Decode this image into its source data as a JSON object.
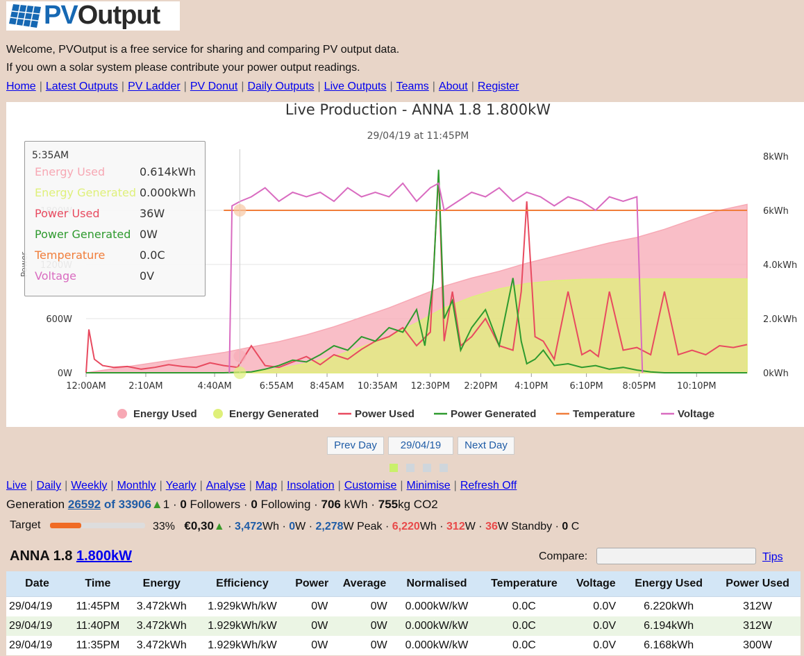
{
  "logo": {
    "text_pv": "PV",
    "text_output": "Output"
  },
  "intro": {
    "line1": "Welcome, PVOutput is a free service for sharing and comparing PV output data.",
    "line2": "If you own a solar system please contribute your power output readings."
  },
  "nav": [
    "Home",
    "Latest Outputs",
    "PV Ladder",
    "PV Donut",
    "Daily Outputs",
    "Live Outputs",
    "Teams",
    "About",
    "Register"
  ],
  "chart_data": {
    "type": "line",
    "title": "Live Production - ANNA 1.8 1.800kW",
    "subtitle": "29/04/19 at 11:45PM",
    "ylabel": "Power",
    "x_ticks": [
      "12:00AM",
      "2:10AM",
      "4:40AM",
      "6:55AM",
      "8:45AM",
      "10:35AM",
      "12:30PM",
      "2:20PM",
      "4:10PM",
      "6:10PM",
      "8:05PM",
      "10:10PM"
    ],
    "y_left_ticks": [
      "0W",
      "600W",
      "1200W",
      "1800W"
    ],
    "y_right_ticks": [
      "0kWh",
      "2.0kWh",
      "4.0kWh",
      "6kWh",
      "8kWh"
    ],
    "ylim_left": [
      0,
      2400
    ],
    "ylim_right": [
      0,
      8
    ],
    "legend_position": "bottom",
    "series": [
      {
        "name": "Energy Used",
        "kind": "area",
        "axis": "right",
        "color": "#f7a8b4",
        "x": [
          0,
          1,
          2,
          3,
          4,
          5,
          6,
          7,
          8,
          9,
          10,
          11,
          12,
          13,
          14,
          15,
          16,
          17,
          18,
          19,
          20,
          21,
          22,
          23,
          24
        ],
        "values": [
          0.0,
          0.15,
          0.3,
          0.45,
          0.6,
          0.75,
          0.95,
          1.15,
          1.4,
          1.7,
          2.05,
          2.4,
          2.8,
          3.2,
          3.5,
          3.75,
          4.05,
          4.3,
          4.55,
          4.8,
          5.0,
          5.3,
          5.65,
          6.0,
          6.22
        ]
      },
      {
        "name": "Energy Generated",
        "kind": "area",
        "axis": "right",
        "color": "#dff07a",
        "x": [
          0,
          1,
          2,
          3,
          4,
          5,
          6,
          7,
          8,
          9,
          10,
          11,
          12,
          13,
          14,
          15,
          16,
          17,
          18,
          19,
          20,
          21,
          22,
          23,
          24
        ],
        "values": [
          0,
          0,
          0,
          0,
          0,
          0,
          0.02,
          0.15,
          0.35,
          0.6,
          0.95,
          1.35,
          1.85,
          2.4,
          2.8,
          3.1,
          3.3,
          3.4,
          3.45,
          3.47,
          3.47,
          3.47,
          3.47,
          3.47,
          3.47
        ]
      },
      {
        "name": "Power Used",
        "kind": "line",
        "axis": "left",
        "color": "#e84a5f",
        "x": [
          0,
          0.1,
          0.3,
          0.6,
          1,
          1.5,
          2,
          2.5,
          3,
          3.5,
          4,
          4.5,
          5,
          5.5,
          6,
          6.5,
          7,
          7.5,
          8,
          8.5,
          9,
          9.5,
          10,
          10.5,
          11,
          11.5,
          12,
          12.5,
          12.8,
          13,
          13.3,
          13.6,
          14,
          14.5,
          15,
          15.5,
          15.8,
          16,
          16.3,
          16.6,
          17,
          17.5,
          18,
          18.3,
          18.6,
          19,
          19.5,
          20,
          20.5,
          21,
          21.5,
          22,
          22.5,
          23,
          23.5,
          24
        ],
        "values": [
          0,
          480,
          150,
          80,
          60,
          70,
          40,
          60,
          90,
          70,
          60,
          110,
          80,
          60,
          300,
          80,
          60,
          120,
          180,
          90,
          200,
          150,
          260,
          350,
          400,
          500,
          300,
          450,
          2200,
          350,
          900,
          300,
          400,
          600,
          300,
          250,
          900,
          1900,
          400,
          350,
          150,
          900,
          200,
          250,
          180,
          900,
          250,
          280,
          200,
          900,
          200,
          250,
          200,
          300,
          280,
          312
        ]
      },
      {
        "name": "Power Generated",
        "kind": "line",
        "axis": "left",
        "color": "#2e9a2e",
        "x": [
          0,
          5,
          5.5,
          6,
          6.5,
          7,
          7.5,
          8,
          8.5,
          9,
          9.5,
          10,
          10.5,
          11,
          11.5,
          12,
          12.3,
          12.6,
          12.8,
          13,
          13.3,
          13.6,
          14,
          14.5,
          15,
          15.5,
          15.8,
          16,
          16.3,
          16.6,
          17,
          17.5,
          18,
          18.5,
          19,
          19.5,
          20,
          20.5,
          21,
          22,
          23,
          24
        ],
        "values": [
          0,
          0,
          5,
          10,
          40,
          80,
          140,
          120,
          200,
          300,
          250,
          400,
          350,
          500,
          450,
          700,
          300,
          1000,
          2250,
          600,
          800,
          250,
          500,
          700,
          300,
          1050,
          350,
          100,
          150,
          250,
          80,
          100,
          60,
          80,
          40,
          60,
          30,
          10,
          0,
          0,
          0,
          0
        ]
      },
      {
        "name": "Temperature",
        "kind": "line",
        "axis": "left",
        "color": "#f07d3a",
        "x": [
          5,
          24
        ],
        "values": [
          1800,
          1800
        ]
      },
      {
        "name": "Voltage",
        "kind": "line",
        "axis": "left",
        "color": "#d96bc0",
        "x": [
          5.2,
          5.3,
          5.6,
          6,
          6.5,
          7,
          7.5,
          8,
          8.5,
          9,
          9.5,
          10,
          10.5,
          11,
          11.5,
          12,
          12.5,
          12.8,
          13,
          13.5,
          14,
          14.5,
          15,
          15.5,
          16,
          16.5,
          17,
          17.5,
          18,
          18.5,
          19,
          19.5,
          20,
          20.2
        ],
        "values": [
          0,
          1850,
          1900,
          1950,
          2050,
          1900,
          2000,
          1950,
          2000,
          1900,
          2050,
          1950,
          2000,
          1950,
          2100,
          1900,
          2050,
          2100,
          1800,
          1900,
          2000,
          1950,
          2050,
          1900,
          2000,
          1950,
          1850,
          1950,
          1900,
          1800,
          1950,
          1900,
          1950,
          0
        ]
      }
    ]
  },
  "tooltip": {
    "time": "5:35AM",
    "rows": [
      {
        "label": "Energy Used",
        "value": "0.614kWh",
        "color": "#f7a8b4"
      },
      {
        "label": "Energy Generated",
        "value": "0.000kWh",
        "color": "#dff07a"
      },
      {
        "label": "Power Used",
        "value": "36W",
        "color": "#e84a5f"
      },
      {
        "label": "Power Generated",
        "value": "0W",
        "color": "#2e9a2e"
      },
      {
        "label": "Temperature",
        "value": "0.0C",
        "color": "#f07d3a"
      },
      {
        "label": "Voltage",
        "value": "0V",
        "color": "#d96bc0"
      }
    ]
  },
  "day_nav": {
    "prev": "Prev Day",
    "date": "29/04/19",
    "next": "Next Day"
  },
  "dots_colors": [
    "#c9f06b",
    "#cfd6dc",
    "#cfd6dc",
    "#cfd6dc"
  ],
  "subnav": [
    "Live",
    "Daily",
    "Weekly",
    "Monthly",
    "Yearly",
    "Analyse",
    "Map",
    "Insolation",
    "Customise",
    "Minimise",
    "Refresh Off"
  ],
  "generation": {
    "label": "Generation",
    "rank": "26592",
    "of_text": "of 33906",
    "change": "1",
    "followers_count": "0",
    "followers_label": "Followers",
    "following_count": "0",
    "following_label": "Following",
    "kwh": "706",
    "kwh_unit": "kWh",
    "co2": "755",
    "co2_unit": "kg CO2"
  },
  "target": {
    "label": "Target",
    "percent": 33,
    "percent_text": "33%",
    "money": "€0,30",
    "gen_wh": "3,472",
    "gen_w": "0",
    "peak": "2,278",
    "peak_label": "W Peak",
    "used_wh": "6,220",
    "used_w": "312",
    "standby": "36",
    "standby_label": "W Standby",
    "temp": "0",
    "temp_unit": "C"
  },
  "system": {
    "name": "ANNA 1.8",
    "size": "1.800kW"
  },
  "compare": {
    "label": "Compare:",
    "tips": "Tips"
  },
  "table": {
    "headers": [
      "Date",
      "Time",
      "Energy",
      "Efficiency",
      "Power",
      "Average",
      "Normalised",
      "Temperature",
      "Voltage",
      "Energy Used",
      "Power Used"
    ],
    "rows": [
      [
        "29/04/19",
        "11:45PM",
        "3.472kWh",
        "1.929kWh/kW",
        "0W",
        "0W",
        "0.000kW/kW",
        "0.0C",
        "0.0V",
        "6.220kWh",
        "312W"
      ],
      [
        "29/04/19",
        "11:40PM",
        "3.472kWh",
        "1.929kWh/kW",
        "0W",
        "0W",
        "0.000kW/kW",
        "0.0C",
        "0.0V",
        "6.194kWh",
        "312W"
      ],
      [
        "29/04/19",
        "11:35PM",
        "3.472kWh",
        "1.929kWh/kW",
        "0W",
        "0W",
        "0.000kW/kW",
        "0.0C",
        "0.0V",
        "6.168kWh",
        "300W"
      ]
    ]
  }
}
